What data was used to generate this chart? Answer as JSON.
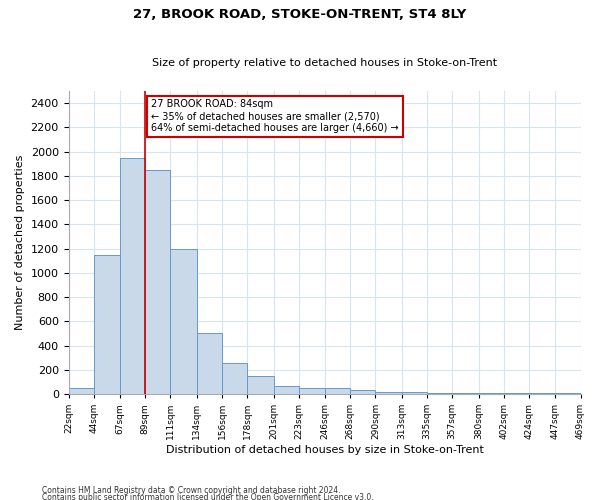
{
  "title1": "27, BROOK ROAD, STOKE-ON-TRENT, ST4 8LY",
  "title2": "Size of property relative to detached houses in Stoke-on-Trent",
  "xlabel": "Distribution of detached houses by size in Stoke-on-Trent",
  "ylabel": "Number of detached properties",
  "bar_left_edges": [
    22,
    44,
    67,
    89,
    111,
    134,
    156,
    178,
    201,
    223,
    246,
    268,
    290,
    313,
    335,
    357,
    380,
    402,
    424,
    447
  ],
  "bar_widths": [
    22,
    23,
    22,
    22,
    23,
    22,
    22,
    23,
    22,
    23,
    22,
    22,
    23,
    22,
    22,
    23,
    22,
    22,
    23,
    22
  ],
  "bar_heights": [
    50,
    1150,
    1950,
    1850,
    1200,
    500,
    260,
    150,
    70,
    50,
    50,
    30,
    20,
    15,
    10,
    5,
    5,
    5,
    5,
    5
  ],
  "bar_color": "#c9d9ea",
  "bar_edge_color": "#6699cc",
  "grid_color": "#d8e4f0",
  "vline_x": 89,
  "vline_color": "#cc0000",
  "ylim": [
    0,
    2500
  ],
  "yticks": [
    0,
    200,
    400,
    600,
    800,
    1000,
    1200,
    1400,
    1600,
    1800,
    2000,
    2200,
    2400
  ],
  "xtick_labels": [
    "22sqm",
    "44sqm",
    "67sqm",
    "89sqm",
    "111sqm",
    "134sqm",
    "156sqm",
    "178sqm",
    "201sqm",
    "223sqm",
    "246sqm",
    "268sqm",
    "290sqm",
    "313sqm",
    "335sqm",
    "357sqm",
    "380sqm",
    "402sqm",
    "424sqm",
    "447sqm",
    "469sqm"
  ],
  "annotation_title": "27 BROOK ROAD: 84sqm",
  "annotation_line1": "← 35% of detached houses are smaller (2,570)",
  "annotation_line2": "64% of semi-detached houses are larger (4,660) →",
  "annotation_box_color": "#ffffff",
  "annotation_box_edge": "#cc0000",
  "footer1": "Contains HM Land Registry data © Crown copyright and database right 2024.",
  "footer2": "Contains public sector information licensed under the Open Government Licence v3.0.",
  "bg_color": "#ffffff"
}
